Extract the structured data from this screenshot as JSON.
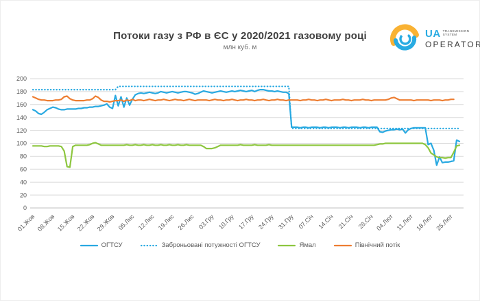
{
  "logo": {
    "ua": "UA",
    "line1": "TRANSMISSION",
    "line2": "SYSTEM",
    "operator": "OPERATOR",
    "blue": "#29abe2",
    "yellow": "#f9b233",
    "dark": "#3a3a3a"
  },
  "chart_data": {
    "type": "line",
    "title": "Потоки газу з РФ в ЄС у 2020/2021 газовому році",
    "subtitle": "млн куб. м",
    "x_unit": "daily, 01 Oct 2020 – 28 Feb 2021",
    "x_tick_labels": [
      "01.Жов",
      "08.Жов",
      "15.Жов",
      "22.Жов",
      "29.Жов",
      "05.Лис",
      "12.Лис",
      "19.Лис",
      "26.Лис",
      "03.Гру",
      "10.Гру",
      "17.Гру",
      "24.Гру",
      "31.Гру",
      "07.Січ",
      "14.Січ",
      "21.Січ",
      "28.Січ",
      "04.Лют",
      "11.Лют",
      "18.Лют",
      "25.Лют"
    ],
    "x_tick_interval_days": 7,
    "ylim": [
      0,
      200
    ],
    "y_tick_step": 20,
    "grid": true,
    "legend_position": "bottom",
    "series": [
      {
        "name": "ОГТСУ",
        "color": "#29a9e1",
        "style": "solid",
        "values": [
          152,
          150,
          146,
          145,
          148,
          152,
          154,
          156,
          155,
          153,
          152,
          152,
          153,
          153,
          153,
          153,
          154,
          154,
          155,
          155,
          156,
          156,
          157,
          157,
          158,
          159,
          161,
          156,
          154,
          174,
          158,
          172,
          156,
          170,
          159,
          168,
          175,
          177,
          178,
          177,
          178,
          179,
          178,
          177,
          178,
          180,
          179,
          178,
          179,
          180,
          179,
          178,
          179,
          180,
          180,
          179,
          178,
          176,
          177,
          179,
          181,
          180,
          179,
          178,
          179,
          180,
          181,
          180,
          179,
          180,
          181,
          180,
          181,
          182,
          181,
          180,
          181,
          182,
          180,
          182,
          183,
          183,
          182,
          181,
          181,
          180,
          181,
          180,
          179,
          179,
          177,
          125,
          125,
          125,
          124,
          125,
          125,
          124,
          125,
          125,
          125,
          124,
          125,
          125,
          124,
          125,
          125,
          125,
          124,
          125,
          125,
          124,
          125,
          125,
          125,
          124,
          125,
          125,
          124,
          125,
          125,
          125,
          118,
          117,
          119,
          120,
          121,
          121,
          122,
          121,
          122,
          116,
          121,
          123,
          124,
          124,
          124,
          124,
          124,
          98,
          100,
          89,
          66,
          79,
          70,
          71,
          71,
          72,
          73,
          105,
          103
        ]
      },
      {
        "name": "Заброньовані потужності ОГТСУ",
        "color": "#29a9e1",
        "style": "dotted",
        "values": [
          183,
          183,
          183,
          183,
          183,
          183,
          183,
          183,
          183,
          183,
          183,
          183,
          183,
          183,
          183,
          183,
          183,
          183,
          183,
          183,
          183,
          183,
          183,
          183,
          183,
          183,
          183,
          183,
          183,
          183,
          188,
          188,
          188,
          188,
          188,
          188,
          188,
          188,
          188,
          188,
          188,
          188,
          188,
          188,
          188,
          188,
          188,
          188,
          188,
          188,
          188,
          188,
          188,
          188,
          188,
          188,
          188,
          188,
          188,
          188,
          188,
          188,
          188,
          188,
          188,
          188,
          188,
          188,
          188,
          188,
          188,
          188,
          188,
          188,
          188,
          188,
          188,
          188,
          188,
          188,
          188,
          188,
          188,
          188,
          188,
          188,
          188,
          188,
          188,
          188,
          188,
          123,
          123,
          123,
          123,
          123,
          123,
          123,
          123,
          123,
          123,
          123,
          123,
          123,
          123,
          123,
          123,
          123,
          123,
          123,
          123,
          123,
          123,
          123,
          123,
          123,
          123,
          123,
          123,
          123,
          123,
          123,
          123,
          123,
          123,
          123,
          123,
          123,
          123,
          123,
          123,
          123,
          123,
          123,
          123,
          123,
          123,
          123,
          123,
          123,
          123,
          123,
          123,
          123,
          123,
          123,
          123,
          123,
          123,
          123,
          123
        ]
      },
      {
        "name": "Ямал",
        "color": "#8dc63f",
        "style": "solid",
        "values": [
          96,
          96,
          96,
          96,
          95,
          95,
          96,
          96,
          96,
          96,
          95,
          88,
          64,
          63,
          95,
          97,
          97,
          97,
          97,
          97,
          98,
          100,
          101,
          99,
          97,
          97,
          97,
          97,
          97,
          97,
          97,
          97,
          97,
          98,
          97,
          97,
          98,
          97,
          97,
          98,
          97,
          97,
          98,
          97,
          97,
          98,
          97,
          97,
          98,
          97,
          97,
          98,
          97,
          97,
          98,
          97,
          97,
          97,
          97,
          97,
          95,
          92,
          92,
          92,
          93,
          95,
          97,
          97,
          97,
          97,
          97,
          97,
          97,
          98,
          97,
          97,
          97,
          97,
          98,
          97,
          97,
          97,
          97,
          98,
          97,
          97,
          97,
          97,
          97,
          97,
          97,
          97,
          97,
          97,
          97,
          97,
          97,
          97,
          97,
          97,
          97,
          97,
          97,
          97,
          97,
          97,
          97,
          97,
          97,
          97,
          97,
          97,
          97,
          97,
          97,
          97,
          97,
          97,
          97,
          97,
          97,
          98,
          99,
          99,
          100,
          100,
          100,
          100,
          100,
          100,
          100,
          100,
          100,
          100,
          100,
          100,
          100,
          100,
          98,
          93,
          85,
          82,
          79,
          78,
          78,
          77,
          78,
          78,
          86,
          96,
          97
        ]
      },
      {
        "name": "Північний потік",
        "color": "#ed7d31",
        "style": "solid",
        "values": [
          172,
          170,
          168,
          167,
          167,
          166,
          166,
          166,
          167,
          167,
          168,
          172,
          173,
          169,
          167,
          166,
          166,
          166,
          166,
          167,
          167,
          169,
          173,
          171,
          167,
          165,
          165,
          164,
          165,
          166,
          166,
          167,
          165,
          167,
          166,
          168,
          166,
          167,
          167,
          166,
          167,
          168,
          167,
          166,
          167,
          167,
          168,
          167,
          166,
          167,
          168,
          167,
          167,
          166,
          167,
          168,
          167,
          166,
          167,
          167,
          167,
          167,
          166,
          167,
          168,
          167,
          167,
          166,
          167,
          167,
          168,
          167,
          166,
          167,
          167,
          168,
          167,
          167,
          166,
          167,
          167,
          168,
          167,
          166,
          167,
          167,
          168,
          167,
          167,
          166,
          167,
          167,
          167,
          167,
          166,
          167,
          167,
          168,
          167,
          167,
          166,
          167,
          167,
          168,
          167,
          166,
          167,
          167,
          167,
          168,
          167,
          167,
          166,
          167,
          167,
          167,
          168,
          167,
          167,
          166,
          167,
          167,
          167,
          167,
          167,
          168,
          170,
          171,
          169,
          167,
          167,
          167,
          167,
          167,
          166,
          167,
          167,
          167,
          167,
          167,
          166,
          167,
          167,
          167,
          166,
          167,
          167,
          168,
          168
        ]
      }
    ]
  }
}
